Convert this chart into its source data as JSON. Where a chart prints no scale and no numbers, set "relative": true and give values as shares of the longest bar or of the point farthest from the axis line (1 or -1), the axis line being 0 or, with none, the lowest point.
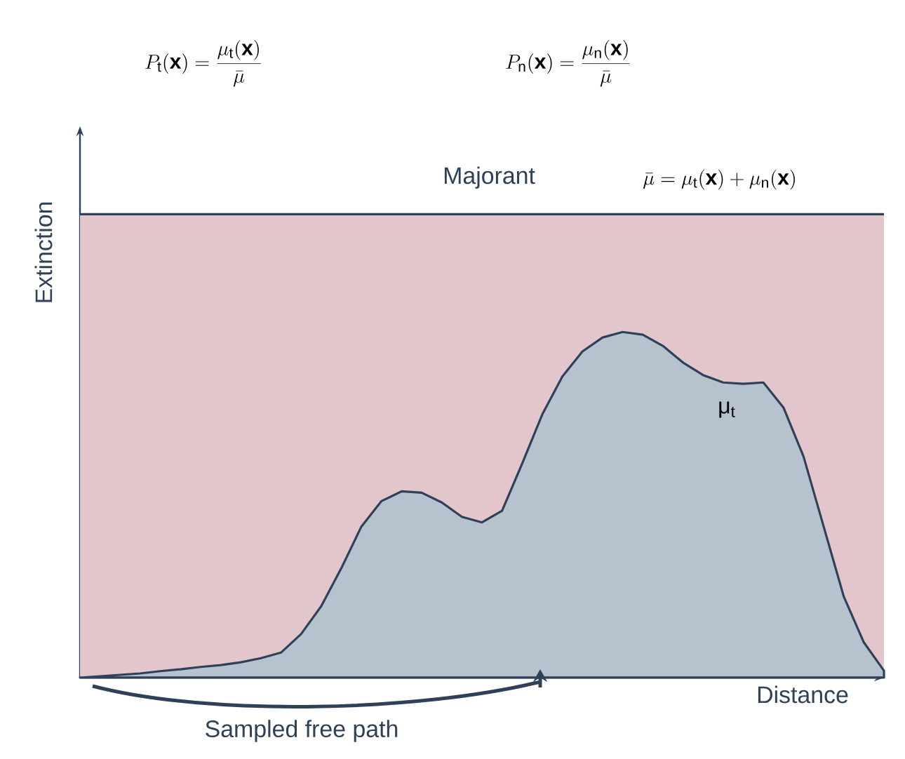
{
  "chart_data": {
    "type": "area",
    "relative": true,
    "legend": false,
    "xlabel": "Distance",
    "ylabel": "Extinction",
    "categories": [
      null,
      null,
      null,
      null,
      null,
      null,
      null,
      null,
      null,
      null,
      null,
      null,
      null,
      null,
      null,
      null,
      null,
      null,
      null,
      null,
      null,
      null,
      null,
      null,
      null,
      null,
      null,
      null,
      null,
      null,
      null,
      null,
      null,
      null,
      null,
      null,
      null,
      null,
      null,
      null,
      null
    ],
    "series": [
      {
        "name": "Majorant",
        "type": "line",
        "color": "#2f4159",
        "values": [
          1,
          1,
          1,
          1,
          1,
          1,
          1,
          1,
          1,
          1,
          1,
          1,
          1,
          1,
          1,
          1,
          1,
          1,
          1,
          1,
          1,
          1,
          1,
          1,
          1,
          1,
          1,
          1,
          1,
          1,
          1,
          1,
          1,
          1,
          1,
          1,
          1,
          1,
          1,
          1,
          1
        ]
      },
      {
        "name": "μ$_{t}$",
        "color": "#b7c2cf",
        "values": [
          0,
          0.003,
          0.006,
          0.009,
          0.014,
          0.018,
          0.023,
          0.027,
          0.033,
          0.042,
          0.054,
          0.094,
          0.154,
          0.236,
          0.326,
          0.381,
          0.402,
          0.399,
          0.378,
          0.347,
          0.335,
          0.36,
          0.462,
          0.568,
          0.65,
          0.704,
          0.734,
          0.746,
          0.74,
          0.716,
          0.68,
          0.653,
          0.637,
          0.634,
          0.637,
          0.583,
          0.477,
          0.326,
          0.175,
          0.076,
          0.015
        ]
      }
    ],
    "bands": [
      {
        "axis": "y",
        "from": 0,
        "to": 1,
        "color": "#e3c6cc"
      }
    ],
    "annotations": [
      "P_{\\mathrm{t}}(\\mathbf{x}) = \\frac{\\mu_{\\mathrm{t}}(\\mathbf{x})}{\\bar{\\mu}}",
      "P_{\\mathrm{n}}(\\mathbf{x}) = \\frac{\\mu_{\\mathrm{n}}(\\mathbf{x})}{\\bar{\\mu}}",
      "\\bar{\\mu} = \\mu_{\\mathrm{t}}(\\mathbf{x}) + \\mu_{\\mathrm{n}}(\\mathbf{x})",
      "Sampled free path"
    ]
  }
}
